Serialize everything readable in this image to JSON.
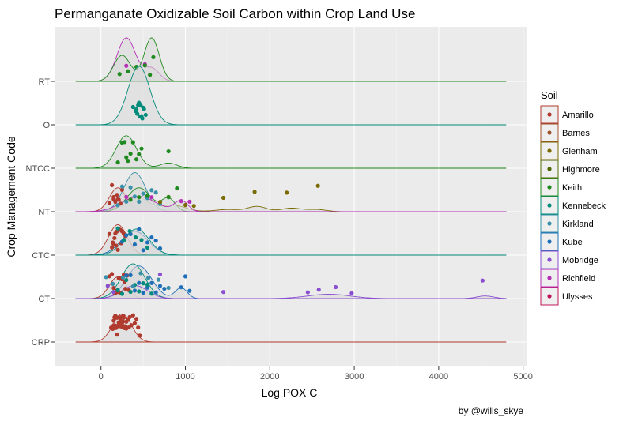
{
  "chart_data": {
    "type": "ridgeline",
    "title": "Permanganate Oxidizable Soil Carbon within Crop Land Use",
    "xlabel": "Log POX C",
    "ylabel": "Crop Management Code",
    "caption": "by @wills_skye",
    "xlim": [
      -550,
      5050
    ],
    "x_ticks": [
      0,
      1000,
      2000,
      3000,
      4000,
      5000
    ],
    "x_tick_labels": [
      "0",
      "1000",
      "2000",
      "3000",
      "4000",
      "5000"
    ],
    "categories": [
      "CRP",
      "CT",
      "CTC",
      "NT",
      "NTCC",
      "O",
      "RT"
    ],
    "legend": {
      "title": "Soil",
      "entries": [
        {
          "name": "Amarillo",
          "color": "#B03A2E"
        },
        {
          "name": "Barnes",
          "color": "#A0522D"
        },
        {
          "name": "Glenham",
          "color": "#7A6A00"
        },
        {
          "name": "Highmore",
          "color": "#4F6B00"
        },
        {
          "name": "Keith",
          "color": "#1F8A1F"
        },
        {
          "name": "Kennebeck",
          "color": "#008B7A"
        },
        {
          "name": "Kirkland",
          "color": "#3A90A8"
        },
        {
          "name": "Kube",
          "color": "#1E6FB8"
        },
        {
          "name": "Mobridge",
          "color": "#8A4FD0"
        },
        {
          "name": "Richfield",
          "color": "#B530B5"
        },
        {
          "name": "Ulysses",
          "color": "#C0145A"
        }
      ]
    },
    "ridges": [
      {
        "category": "CRP",
        "range": [
          -300,
          4800
        ],
        "curves": [
          {
            "soil": "Amarillo",
            "peaks": [
              [
                250,
                0.65,
                110
              ]
            ]
          }
        ],
        "points": [
          {
            "soil": "Amarillo",
            "x": [
              120,
              140,
              150,
              160,
              170,
              180,
              190,
              200,
              210,
              220,
              230,
              240,
              250,
              260,
              270,
              280,
              290,
              300,
              320,
              340,
              360,
              380,
              400,
              420,
              440,
              460,
              170,
              210,
              250,
              300,
              150,
              230,
              270,
              330,
              190,
              260
            ]
          }
        ]
      },
      {
        "category": "CT",
        "range": [
          -300,
          4800
        ],
        "curves": [
          {
            "soil": "Amarillo",
            "peaks": [
              [
                200,
                0.5,
                100
              ]
            ]
          },
          {
            "soil": "Kube",
            "peaks": [
              [
                450,
                0.75,
                150
              ],
              [
                950,
                0.25,
                70
              ]
            ]
          },
          {
            "soil": "Kennebeck",
            "peaks": [
              [
                380,
                0.8,
                140
              ]
            ]
          },
          {
            "soil": "Mobridge",
            "peaks": [
              [
                400,
                0.3,
                150
              ],
              [
                2700,
                0.1,
                250
              ],
              [
                4550,
                0.06,
                100
              ]
            ]
          }
        ],
        "points": [
          {
            "soil": "Amarillo",
            "x": [
              100,
              130,
              150,
              170,
              190,
              210,
              230,
              250,
              270,
              290,
              310,
              330,
              160,
              200,
              240,
              280
            ]
          },
          {
            "soil": "Kube",
            "x": [
              300,
              350,
              400,
              450,
              500,
              550,
              600,
              650,
              700,
              750,
              950,
              1000,
              1050
            ]
          },
          {
            "soil": "Kennebeck",
            "x": [
              200,
              250,
              300,
              350,
              400,
              450,
              500,
              550,
              600
            ]
          },
          {
            "soil": "Kirkland",
            "x": [
              60,
              140,
              260,
              380,
              470,
              560,
              680,
              800
            ]
          },
          {
            "soil": "Mobridge",
            "x": [
              80,
              150,
              700,
              1450,
              2450,
              2580,
              2780,
              2970,
              4520
            ]
          }
        ]
      },
      {
        "category": "CTC",
        "range": [
          -300,
          4800
        ],
        "curves": [
          {
            "soil": "Amarillo",
            "peaks": [
              [
                200,
                0.7,
                110
              ]
            ]
          },
          {
            "soil": "Kube",
            "peaks": [
              [
                400,
                0.55,
                160
              ]
            ]
          },
          {
            "soil": "Kennebeck",
            "peaks": [
              [
                420,
                0.6,
                150
              ]
            ]
          }
        ],
        "points": [
          {
            "soil": "Amarillo",
            "x": [
              100,
              130,
              150,
              170,
              190,
              210,
              230,
              250,
              270,
              290,
              160,
              200,
              240,
              140,
              180
            ]
          },
          {
            "soil": "Kube",
            "x": [
              250,
              300,
              350,
              400,
              450,
              500,
              550,
              600,
              650,
              700
            ]
          },
          {
            "soil": "Kennebeck",
            "x": [
              200,
              270,
              340,
              410,
              480,
              550
            ]
          }
        ]
      },
      {
        "category": "NT",
        "range": [
          -300,
          4800
        ],
        "curves": [
          {
            "soil": "Amarillo",
            "peaks": [
              [
                200,
                0.55,
                100
              ]
            ]
          },
          {
            "soil": "Glenham",
            "peaks": [
              [
                400,
                0.35,
                150
              ],
              [
                850,
                0.15,
                150
              ],
              [
                1500,
                0.05,
                150
              ],
              [
                1850,
                0.12,
                110
              ],
              [
                2250,
                0.08,
                120
              ],
              [
                2550,
                0.05,
                120
              ]
            ]
          },
          {
            "soil": "Kirkland",
            "peaks": [
              [
                400,
                0.9,
                130
              ]
            ]
          },
          {
            "soil": "Keith",
            "peaks": [
              [
                450,
                0.55,
                140
              ],
              [
                800,
                0.3,
                80
              ]
            ]
          },
          {
            "soil": "Richfield",
            "peaks": [
              [
                450,
                0.35,
                200
              ],
              [
                950,
                0.25,
                80
              ]
            ]
          }
        ],
        "points": [
          {
            "soil": "Amarillo",
            "x": [
              100,
              130,
              150,
              170,
              190,
              210,
              230,
              250,
              150,
              200
            ]
          },
          {
            "soil": "Kirkland",
            "x": [
              200,
              250,
              300,
              350,
              400,
              450,
              500,
              550,
              600,
              650,
              700
            ]
          },
          {
            "soil": "Glenham",
            "x": [
              700,
              800,
              1000,
              1100,
              1450,
              1820,
              2200,
              2570
            ]
          },
          {
            "soil": "Keith",
            "x": [
              350,
              450,
              550,
              800,
              900
            ]
          },
          {
            "soil": "Richfield",
            "x": [
              300,
              600,
              950,
              1050
            ]
          }
        ]
      },
      {
        "category": "NTCC",
        "range": [
          -300,
          4800
        ],
        "curves": [
          {
            "soil": "Keith",
            "peaks": [
              [
                300,
                0.75,
                120
              ],
              [
                800,
                0.12,
                100
              ]
            ]
          }
        ],
        "points": [
          {
            "soil": "Keith",
            "x": [
              200,
              250,
              280,
              320,
              350,
              380,
              420,
              450,
              800,
              480,
              300
            ]
          }
        ]
      },
      {
        "category": "O",
        "range": [
          -300,
          4800
        ],
        "curves": [
          {
            "soil": "Kennebeck",
            "peaks": [
              [
                450,
                1.35,
                130
              ]
            ]
          }
        ],
        "points": [
          {
            "soil": "Kennebeck",
            "x": [
              380,
              410,
              430,
              450,
              470,
              490,
              510,
              530,
              440,
              460,
              500,
              420,
              480
            ]
          }
        ]
      },
      {
        "category": "RT",
        "range": [
          -300,
          4800
        ],
        "curves": [
          {
            "soil": "Richfield",
            "peaks": [
              [
                300,
                1.0,
                110
              ],
              [
                600,
                0.3,
                90
              ]
            ]
          },
          {
            "soil": "Keith",
            "peaks": [
              [
                250,
                0.6,
                100
              ],
              [
                600,
                1.0,
                90
              ]
            ]
          }
        ],
        "points": [
          {
            "soil": "Richfield",
            "x": [
              300,
              520
            ]
          },
          {
            "soil": "Keith",
            "x": [
              220,
              320,
              420,
              520,
              580,
              620
            ]
          }
        ]
      }
    ]
  }
}
